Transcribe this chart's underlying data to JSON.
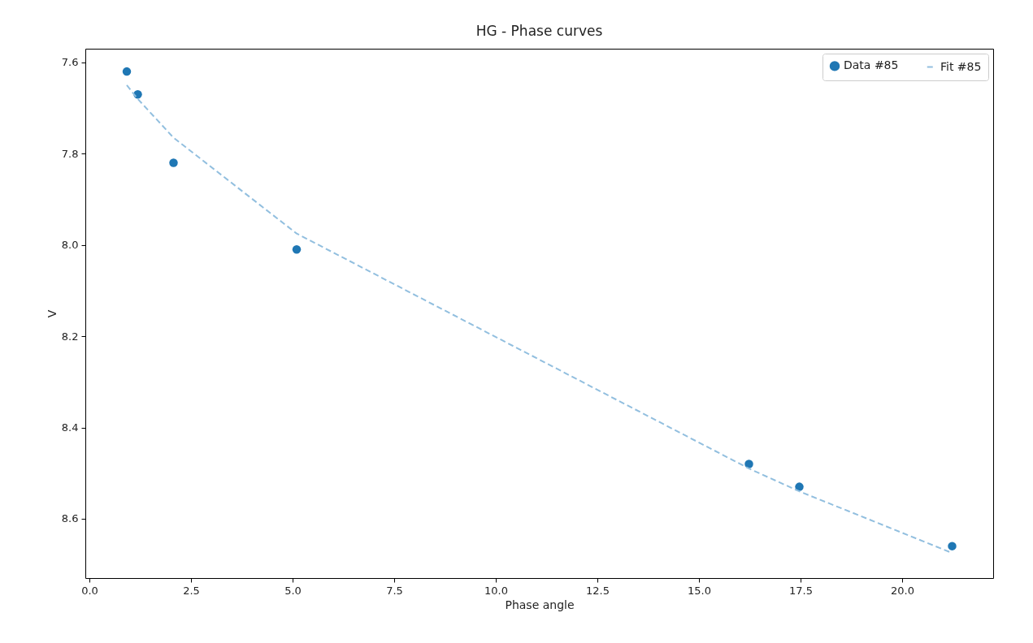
{
  "chart_data": {
    "type": "scatter",
    "title": "HG - Phase curves",
    "xlabel": "Phase angle",
    "ylabel": "V",
    "xlim": [
      -0.1,
      22.24
    ],
    "ylim": [
      8.73,
      7.57
    ],
    "xticks": [
      {
        "value": 0,
        "label": "0.0"
      },
      2.5,
      {
        "value": 5,
        "label": "5.0"
      },
      7.5,
      {
        "value": 10,
        "label": "10.0"
      },
      12.5,
      {
        "value": 15,
        "label": "15.0"
      },
      17.5,
      {
        "value": 20,
        "label": "20.0"
      }
    ],
    "yticks": [
      7.6,
      7.8,
      {
        "value": 8,
        "label": "8.0"
      },
      8.2,
      8.4,
      8.6
    ],
    "grid": false,
    "legend": "top right",
    "series": [
      {
        "name": "Data #85",
        "marker": "circle",
        "color": "#1f77b4",
        "x": [
          0.92,
          1.19,
          2.07,
          5.1,
          16.23,
          17.47,
          21.23
        ],
        "values": [
          7.62,
          7.67,
          7.82,
          8.01,
          8.48,
          8.53,
          8.66
        ]
      },
      {
        "name": "Fit #85",
        "type": "line",
        "line_style": "dashed",
        "color": "#92bfdf",
        "x": [
          0.92,
          1.19,
          2.07,
          5.1,
          16.23,
          17.47,
          21.23
        ],
        "values": [
          7.65,
          7.68,
          7.765,
          7.975,
          8.49,
          8.54,
          8.675
        ]
      }
    ]
  }
}
